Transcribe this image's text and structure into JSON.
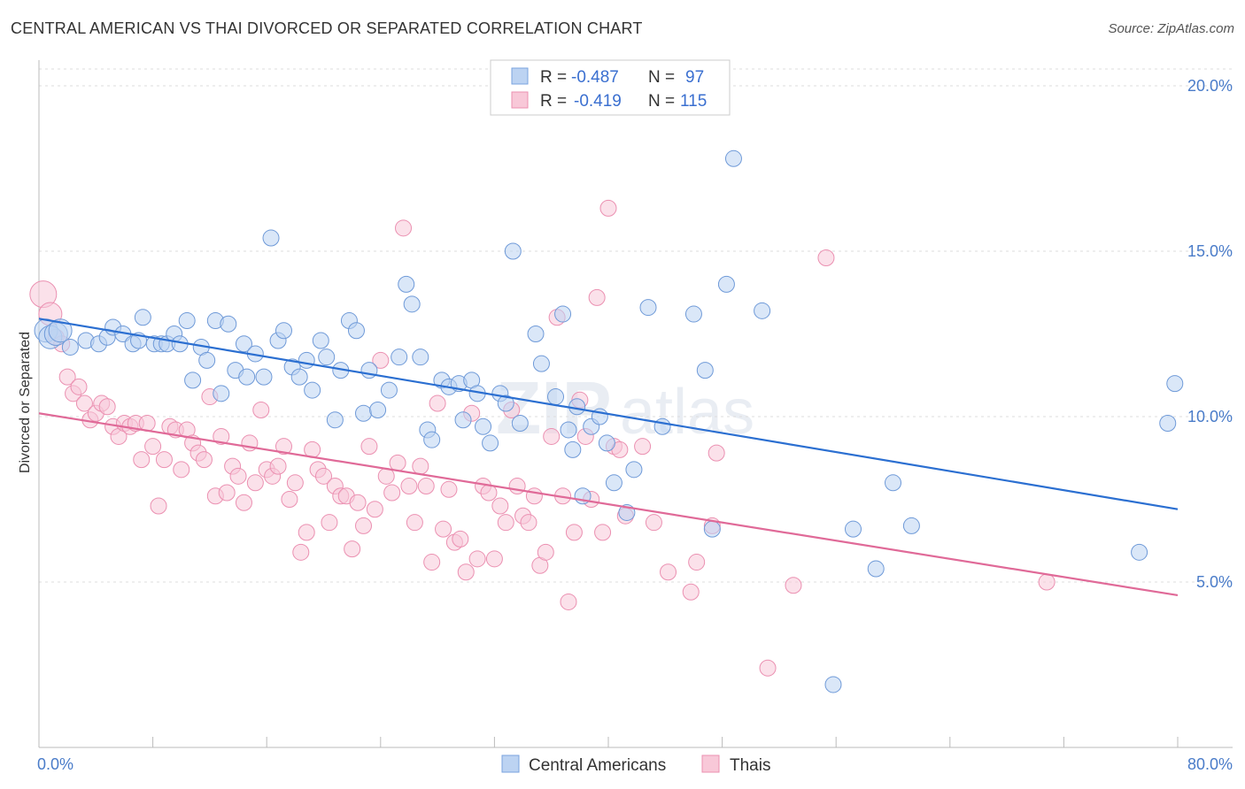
{
  "header": {
    "title": "CENTRAL AMERICAN VS THAI DIVORCED OR SEPARATED CORRELATION CHART",
    "source": "Source: ZipAtlas.com"
  },
  "watermark": {
    "zip": "ZIP",
    "atlas": "atlas"
  },
  "chart_data": {
    "type": "scatter",
    "title": "CENTRAL AMERICAN VS THAI DIVORCED OR SEPARATED CORRELATION CHART",
    "xlabel": "",
    "ylabel": "Divorced or Separated",
    "xlim": [
      0,
      80
    ],
    "ylim": [
      0,
      21
    ],
    "x_tick_labels": {
      "min": "0.0%",
      "max": "80.0%"
    },
    "y_ticks": [
      {
        "value": 5,
        "label": "5.0%"
      },
      {
        "value": 10,
        "label": "10.0%"
      },
      {
        "value": 15,
        "label": "15.0%"
      },
      {
        "value": 20,
        "label": "20.0%"
      }
    ],
    "legend": {
      "rows": [
        {
          "r_label": "R =",
          "r_value": "-0.487",
          "n_label": "N =",
          "n_value": "97"
        },
        {
          "r_label": "R =",
          "r_value": "-0.419",
          "n_label": "N =",
          "n_value": "115"
        }
      ]
    },
    "series": [
      {
        "name": "Central Americans",
        "color": "#8fb4e6",
        "line_color": "#2b6fd1",
        "trend": {
          "x0": 0,
          "y0": 12.96,
          "x1": 80,
          "y1": 7.2
        },
        "points": [
          [
            0.5,
            12.6
          ],
          [
            0.8,
            12.4
          ],
          [
            1.2,
            12.5
          ],
          [
            1.5,
            12.6
          ],
          [
            2.2,
            12.1
          ],
          [
            3.3,
            12.3
          ],
          [
            4.2,
            12.2
          ],
          [
            4.8,
            12.4
          ],
          [
            5.2,
            12.7
          ],
          [
            5.9,
            12.5
          ],
          [
            6.6,
            12.2
          ],
          [
            7.0,
            12.3
          ],
          [
            7.3,
            13.0
          ],
          [
            8.1,
            12.2
          ],
          [
            8.6,
            12.2
          ],
          [
            9.0,
            12.2
          ],
          [
            9.5,
            12.5
          ],
          [
            9.9,
            12.2
          ],
          [
            10.4,
            12.9
          ],
          [
            10.8,
            11.1
          ],
          [
            11.4,
            12.1
          ],
          [
            11.8,
            11.7
          ],
          [
            12.4,
            12.9
          ],
          [
            12.8,
            10.7
          ],
          [
            13.3,
            12.8
          ],
          [
            13.8,
            11.4
          ],
          [
            14.4,
            12.2
          ],
          [
            14.6,
            11.2
          ],
          [
            15.2,
            11.9
          ],
          [
            15.8,
            11.2
          ],
          [
            16.3,
            15.4
          ],
          [
            16.8,
            12.3
          ],
          [
            17.2,
            12.6
          ],
          [
            17.8,
            11.5
          ],
          [
            18.3,
            11.2
          ],
          [
            18.8,
            11.7
          ],
          [
            19.2,
            10.8
          ],
          [
            19.8,
            12.3
          ],
          [
            20.2,
            11.8
          ],
          [
            20.8,
            9.9
          ],
          [
            21.2,
            11.4
          ],
          [
            21.8,
            12.9
          ],
          [
            22.3,
            12.6
          ],
          [
            22.8,
            10.1
          ],
          [
            23.2,
            11.4
          ],
          [
            23.8,
            10.2
          ],
          [
            24.6,
            10.8
          ],
          [
            25.3,
            11.8
          ],
          [
            25.8,
            14.0
          ],
          [
            26.2,
            13.4
          ],
          [
            26.8,
            11.8
          ],
          [
            27.3,
            9.6
          ],
          [
            27.6,
            9.3
          ],
          [
            28.3,
            11.1
          ],
          [
            28.8,
            10.9
          ],
          [
            29.5,
            11.0
          ],
          [
            29.8,
            9.9
          ],
          [
            30.4,
            11.1
          ],
          [
            30.8,
            10.7
          ],
          [
            31.2,
            9.7
          ],
          [
            31.7,
            9.2
          ],
          [
            32.4,
            10.7
          ],
          [
            32.8,
            10.4
          ],
          [
            33.3,
            15.0
          ],
          [
            33.8,
            9.8
          ],
          [
            34.9,
            12.5
          ],
          [
            35.3,
            11.6
          ],
          [
            36.3,
            10.6
          ],
          [
            36.8,
            13.1
          ],
          [
            37.2,
            9.6
          ],
          [
            37.5,
            9.0
          ],
          [
            37.8,
            10.3
          ],
          [
            38.2,
            7.6
          ],
          [
            38.8,
            9.7
          ],
          [
            39.4,
            10.0
          ],
          [
            39.9,
            9.2
          ],
          [
            40.4,
            8.0
          ],
          [
            41.3,
            7.1
          ],
          [
            41.8,
            8.4
          ],
          [
            42.8,
            13.3
          ],
          [
            43.8,
            9.7
          ],
          [
            46.0,
            13.1
          ],
          [
            46.8,
            11.4
          ],
          [
            47.3,
            6.6
          ],
          [
            48.3,
            14.0
          ],
          [
            48.8,
            17.8
          ],
          [
            50.8,
            13.2
          ],
          [
            55.8,
            1.9
          ],
          [
            57.2,
            6.6
          ],
          [
            58.8,
            5.4
          ],
          [
            60.0,
            8.0
          ],
          [
            61.3,
            6.7
          ],
          [
            77.3,
            5.9
          ],
          [
            79.3,
            9.8
          ],
          [
            79.8,
            11.0
          ]
        ]
      },
      {
        "name": "Thais",
        "color": "#f3a9c2",
        "line_color": "#e06a98",
        "trend": {
          "x0": 0,
          "y0": 10.1,
          "x1": 80,
          "y1": 4.6
        },
        "points": [
          [
            0.3,
            13.7
          ],
          [
            0.8,
            13.1
          ],
          [
            1.2,
            12.4
          ],
          [
            1.6,
            12.2
          ],
          [
            2.0,
            11.2
          ],
          [
            2.4,
            10.7
          ],
          [
            2.8,
            10.9
          ],
          [
            3.2,
            10.4
          ],
          [
            3.6,
            9.9
          ],
          [
            4.0,
            10.1
          ],
          [
            4.4,
            10.4
          ],
          [
            4.8,
            10.3
          ],
          [
            5.2,
            9.7
          ],
          [
            5.6,
            9.4
          ],
          [
            6.0,
            9.8
          ],
          [
            6.4,
            9.7
          ],
          [
            6.8,
            9.8
          ],
          [
            7.2,
            8.7
          ],
          [
            7.6,
            9.8
          ],
          [
            8.0,
            9.1
          ],
          [
            8.4,
            7.3
          ],
          [
            8.8,
            8.7
          ],
          [
            9.2,
            9.7
          ],
          [
            9.6,
            9.6
          ],
          [
            10.0,
            8.4
          ],
          [
            10.4,
            9.6
          ],
          [
            10.8,
            9.2
          ],
          [
            11.2,
            8.9
          ],
          [
            11.6,
            8.7
          ],
          [
            12.0,
            10.6
          ],
          [
            12.4,
            7.6
          ],
          [
            12.8,
            9.4
          ],
          [
            13.2,
            7.7
          ],
          [
            13.6,
            8.5
          ],
          [
            14.0,
            8.2
          ],
          [
            14.4,
            7.4
          ],
          [
            14.8,
            9.2
          ],
          [
            15.2,
            8.0
          ],
          [
            15.6,
            10.2
          ],
          [
            16.0,
            8.4
          ],
          [
            16.4,
            8.2
          ],
          [
            16.8,
            8.5
          ],
          [
            17.2,
            9.1
          ],
          [
            17.6,
            7.5
          ],
          [
            18.0,
            8.0
          ],
          [
            18.4,
            5.9
          ],
          [
            18.8,
            6.5
          ],
          [
            19.2,
            9.0
          ],
          [
            19.6,
            8.4
          ],
          [
            20.0,
            8.2
          ],
          [
            20.4,
            6.8
          ],
          [
            20.8,
            7.9
          ],
          [
            21.2,
            7.6
          ],
          [
            21.6,
            7.6
          ],
          [
            22.0,
            6.0
          ],
          [
            22.4,
            7.4
          ],
          [
            22.8,
            6.7
          ],
          [
            23.2,
            9.1
          ],
          [
            23.6,
            7.2
          ],
          [
            24.0,
            11.7
          ],
          [
            24.4,
            8.2
          ],
          [
            24.8,
            7.7
          ],
          [
            25.2,
            8.6
          ],
          [
            25.6,
            15.7
          ],
          [
            26.0,
            7.9
          ],
          [
            26.4,
            6.8
          ],
          [
            26.8,
            8.5
          ],
          [
            27.2,
            7.9
          ],
          [
            27.6,
            5.6
          ],
          [
            28.0,
            10.4
          ],
          [
            28.4,
            6.6
          ],
          [
            28.8,
            7.8
          ],
          [
            29.2,
            6.2
          ],
          [
            29.6,
            6.3
          ],
          [
            30.0,
            5.3
          ],
          [
            30.4,
            10.1
          ],
          [
            30.8,
            5.7
          ],
          [
            31.2,
            7.9
          ],
          [
            31.6,
            7.7
          ],
          [
            32.0,
            5.7
          ],
          [
            32.4,
            7.3
          ],
          [
            32.8,
            6.8
          ],
          [
            33.2,
            10.2
          ],
          [
            33.6,
            7.9
          ],
          [
            34.0,
            7.0
          ],
          [
            34.4,
            6.8
          ],
          [
            34.8,
            7.6
          ],
          [
            35.2,
            5.5
          ],
          [
            35.6,
            5.9
          ],
          [
            36.0,
            9.4
          ],
          [
            36.4,
            13.0
          ],
          [
            36.8,
            7.6
          ],
          [
            37.2,
            4.4
          ],
          [
            37.6,
            6.5
          ],
          [
            38.0,
            10.5
          ],
          [
            38.4,
            9.4
          ],
          [
            38.8,
            7.5
          ],
          [
            39.2,
            13.6
          ],
          [
            39.6,
            6.5
          ],
          [
            40.0,
            16.3
          ],
          [
            40.4,
            9.1
          ],
          [
            40.8,
            9.0
          ],
          [
            41.2,
            7.0
          ],
          [
            42.4,
            9.1
          ],
          [
            43.2,
            6.8
          ],
          [
            44.2,
            5.3
          ],
          [
            45.8,
            4.7
          ],
          [
            46.2,
            5.6
          ],
          [
            47.3,
            6.7
          ],
          [
            47.6,
            8.9
          ],
          [
            51.2,
            2.4
          ],
          [
            53.0,
            4.9
          ],
          [
            55.3,
            14.8
          ],
          [
            70.8,
            5.0
          ]
        ]
      }
    ]
  },
  "legend_bottom": [
    {
      "label": "Central Americans"
    },
    {
      "label": "Thais"
    }
  ]
}
